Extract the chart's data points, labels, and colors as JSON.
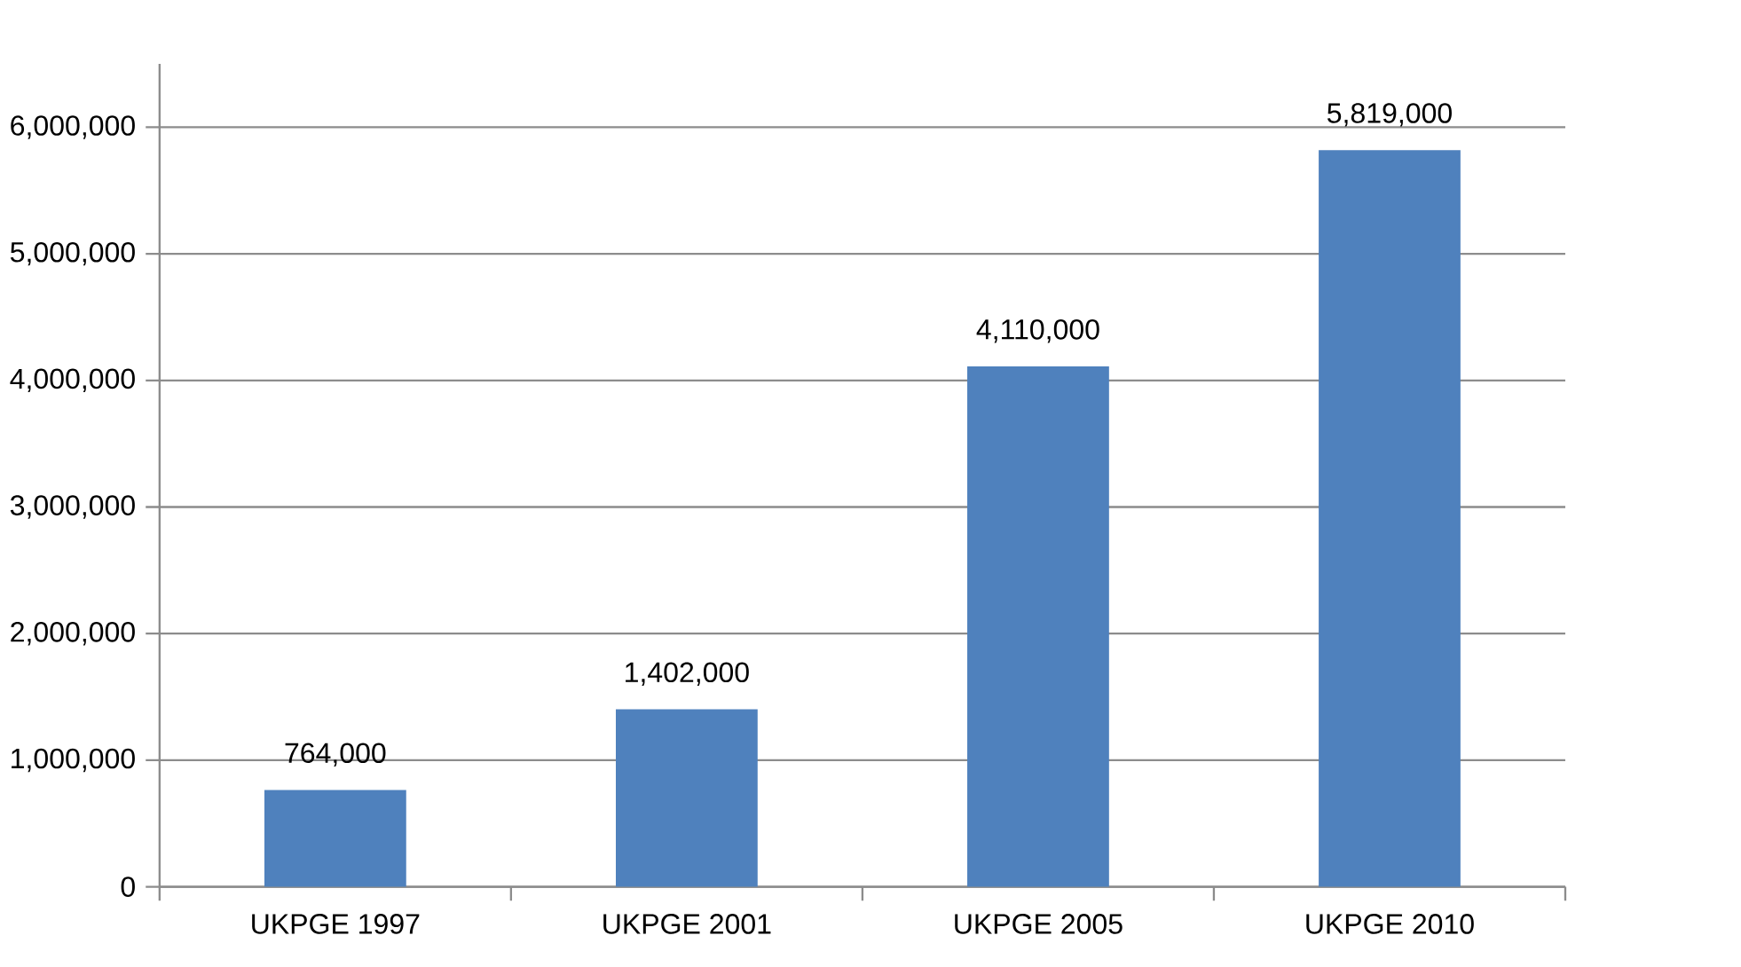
{
  "chart_data": {
    "type": "bar",
    "categories": [
      "UKPGE 1997",
      "UKPGE 2001",
      "UKPGE 2005",
      "UKPGE 2010"
    ],
    "values": [
      764000,
      1402000,
      4110000,
      5819000
    ],
    "value_labels": [
      "764,000",
      "1,402,000",
      "4,110,000",
      "5,819,000"
    ],
    "color": "#4f81bd",
    "ylim": [
      0,
      6500000
    ],
    "yticks": [
      {
        "value": 0,
        "label": "0"
      },
      {
        "value": 1000000,
        "label": "1,000,000"
      },
      {
        "value": 2000000,
        "label": "2,000,000"
      },
      {
        "value": 3000000,
        "label": "3,000,000"
      },
      {
        "value": 4000000,
        "label": "4,000,000"
      },
      {
        "value": 5000000,
        "label": "5,000,000"
      },
      {
        "value": 6000000,
        "label": "6,000,000"
      }
    ],
    "grid": "y"
  }
}
